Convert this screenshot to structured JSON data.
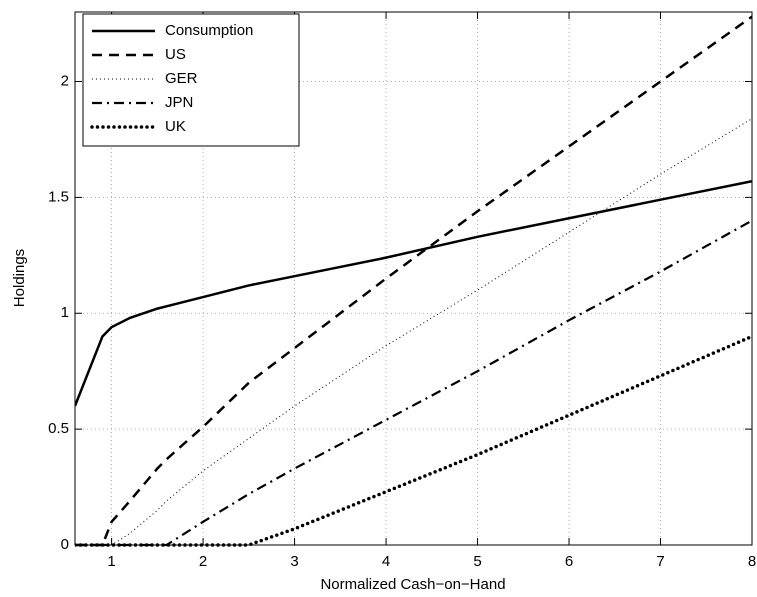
{
  "chart_data": {
    "type": "line",
    "xlabel": "Normalized Cash−on−Hand",
    "ylabel": "Holdings",
    "x": [
      0.6,
      0.9,
      1,
      1.2,
      1.5,
      1.6,
      2,
      2.5,
      3,
      4,
      5,
      6,
      7,
      8
    ],
    "series": [
      {
        "name": "Consumption",
        "color": "#000000",
        "linestyle": "-",
        "values": [
          0.6,
          0.9,
          0.94,
          0.98,
          1.02,
          1.03,
          1.07,
          1.12,
          1.16,
          1.24,
          1.33,
          1.41,
          1.49,
          1.57
        ]
      },
      {
        "name": "US",
        "color": "#000000",
        "linestyle": "--",
        "values": [
          0,
          0,
          0.1,
          0.19,
          0.33,
          0.37,
          0.51,
          0.7,
          0.85,
          1.15,
          1.44,
          1.72,
          2.0,
          2.28
        ]
      },
      {
        "name": "GER",
        "color": "#000000",
        "linestyle": ":",
        "values": [
          0,
          0,
          0,
          0.05,
          0.15,
          0.19,
          0.32,
          0.46,
          0.6,
          0.86,
          1.1,
          1.35,
          1.6,
          1.84
        ]
      },
      {
        "name": "JPN",
        "color": "#000000",
        "linestyle": "-.",
        "values": [
          0,
          0,
          0,
          0,
          0,
          0,
          0.1,
          0.22,
          0.33,
          0.54,
          0.75,
          0.97,
          1.18,
          1.4
        ]
      },
      {
        "name": "UK",
        "color": "#000000",
        "linestyle": ".",
        "values": [
          0,
          0,
          0,
          0,
          0,
          0,
          0,
          0,
          0.07,
          0.23,
          0.39,
          0.56,
          0.73,
          0.9
        ]
      }
    ],
    "xlim": [
      0.6,
      8
    ],
    "ylim": [
      0,
      2.3
    ],
    "xticks": [
      1,
      2,
      3,
      4,
      5,
      6,
      7,
      8
    ],
    "yticks": [
      0,
      0.5,
      1,
      1.5,
      2
    ],
    "grid": true,
    "legend": "upper left"
  }
}
